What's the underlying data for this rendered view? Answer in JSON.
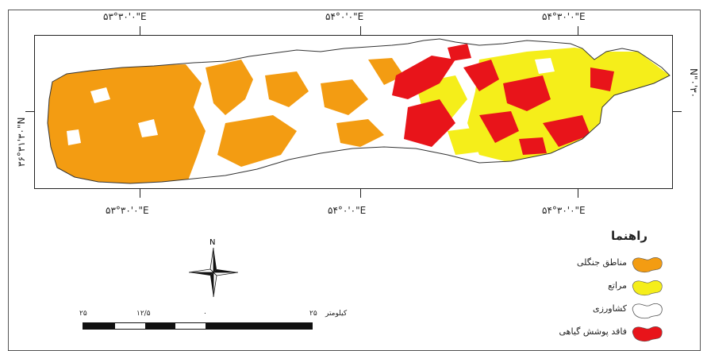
{
  "coords": {
    "top": [
      "۵۳°۳۰'۰\"E",
      "۵۴°۰'۰\"E",
      "۵۴°۳۰'۰\"E"
    ],
    "bottom": [
      "۵۳°۳۰'۰\"E",
      "۵۴°۰'۰\"E",
      "۵۴°۳۰'۰\"E"
    ],
    "left": "۳۶°۳۱'۳۰\"N",
    "right": "N\"۰'۳۰"
  },
  "legend": {
    "title": "راهنما",
    "items": [
      {
        "label": "مناطق جنگلی",
        "color": "#f39c12"
      },
      {
        "label": "مراتع",
        "color": "#f5ee1a"
      },
      {
        "label": "کشاورزی",
        "color": "#ffffff"
      },
      {
        "label": "فاقد پوشش گیاهی",
        "color": "#e8141a"
      }
    ]
  },
  "north_arrow": {
    "label": "N"
  },
  "scale": {
    "labels": [
      "۲۵",
      "۱۲/۵",
      "۰",
      "۲۵"
    ],
    "unit": "کیلومتر"
  },
  "colors": {
    "forest": "#f39c12",
    "rangeland": "#f5ee1a",
    "agriculture": "#ffffff",
    "barren": "#e8141a",
    "outline": "#333333"
  }
}
